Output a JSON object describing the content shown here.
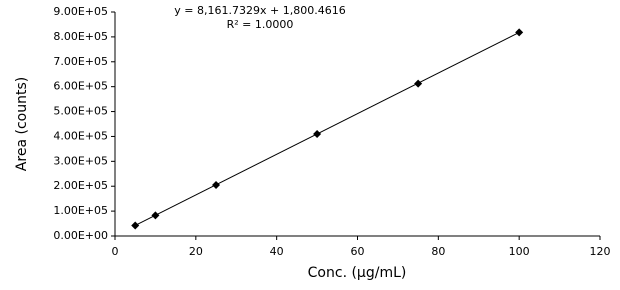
{
  "chart_data": {
    "type": "scatter",
    "x": [
      5,
      10,
      25,
      50,
      75,
      100
    ],
    "values": [
      42000,
      83000,
      205000,
      410000,
      612000,
      818000
    ],
    "color": "#000000",
    "x_label": "Conc. (µg/mL)",
    "y_label": "Area (counts)",
    "trendline": {
      "slope": 8161.7329,
      "intercept": 1800.4616,
      "equation": "y = 8,161.7329x + 1,800.4616",
      "r_squared": "R² = 1.0000"
    },
    "xlim": [
      0,
      120
    ],
    "xticks": [
      0,
      20,
      40,
      60,
      80,
      100,
      120
    ],
    "ylim": [
      0,
      900000
    ],
    "yticks": [
      {
        "value": 0,
        "label": "0.00E+00"
      },
      {
        "value": 100000,
        "label": "1.00E+05"
      },
      {
        "value": 200000,
        "label": "2.00E+05"
      },
      {
        "value": 300000,
        "label": "3.00E+05"
      },
      {
        "value": 400000,
        "label": "4.00E+05"
      },
      {
        "value": 500000,
        "label": "5.00E+05"
      },
      {
        "value": 600000,
        "label": "6.00E+05"
      },
      {
        "value": 700000,
        "label": "7.00E+05"
      },
      {
        "value": 800000,
        "label": "8.00E+05"
      },
      {
        "value": 900000,
        "label": "9.00E+05"
      }
    ],
    "grid": false
  }
}
